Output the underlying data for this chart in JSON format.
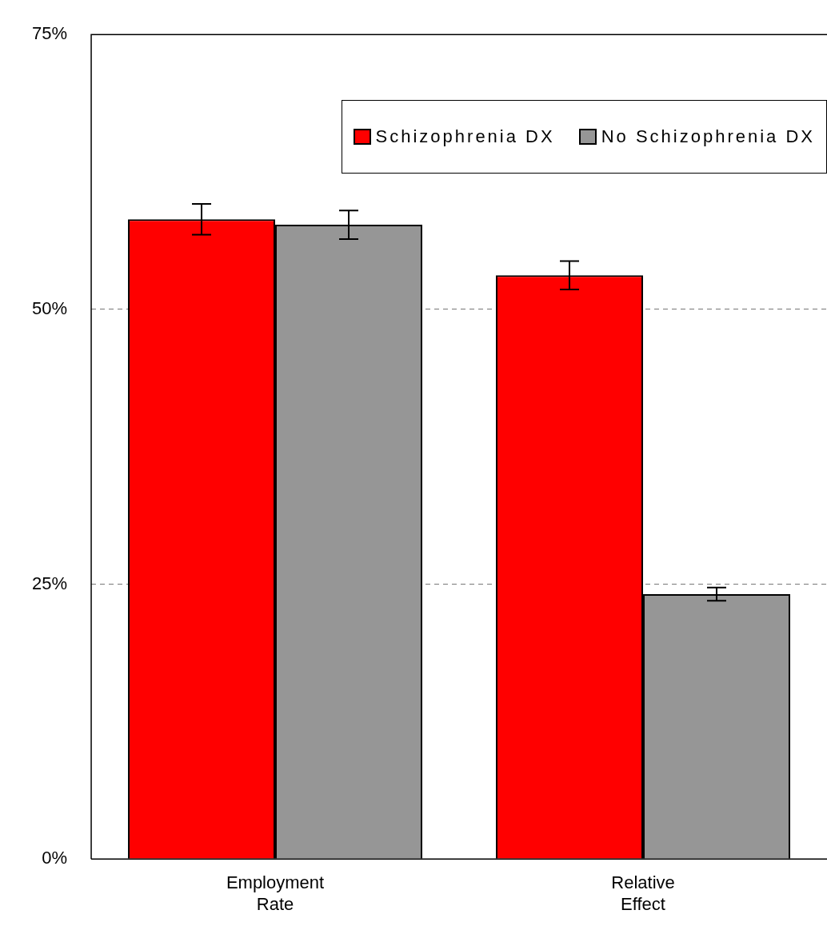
{
  "chart_data": {
    "type": "bar",
    "categories": [
      "Employment Rate",
      "Relative Effect"
    ],
    "series": [
      {
        "name": "Schizophrenia DX",
        "color": "#ff0000",
        "values": [
          58.2,
          53.1
        ],
        "errors": [
          1.4,
          1.3
        ]
      },
      {
        "name": "No Schizophrenia DX",
        "color": "#969696",
        "values": [
          57.7,
          24.1
        ],
        "errors": [
          1.3,
          0.6
        ]
      }
    ],
    "ylim": [
      0,
      75
    ],
    "yticks": [
      {
        "value": 0,
        "label": "0%"
      },
      {
        "value": 25,
        "label": "25%"
      },
      {
        "value": 50,
        "label": "50%"
      },
      {
        "value": 75,
        "label": "75%"
      }
    ],
    "grid": "y",
    "legend": "top right"
  }
}
